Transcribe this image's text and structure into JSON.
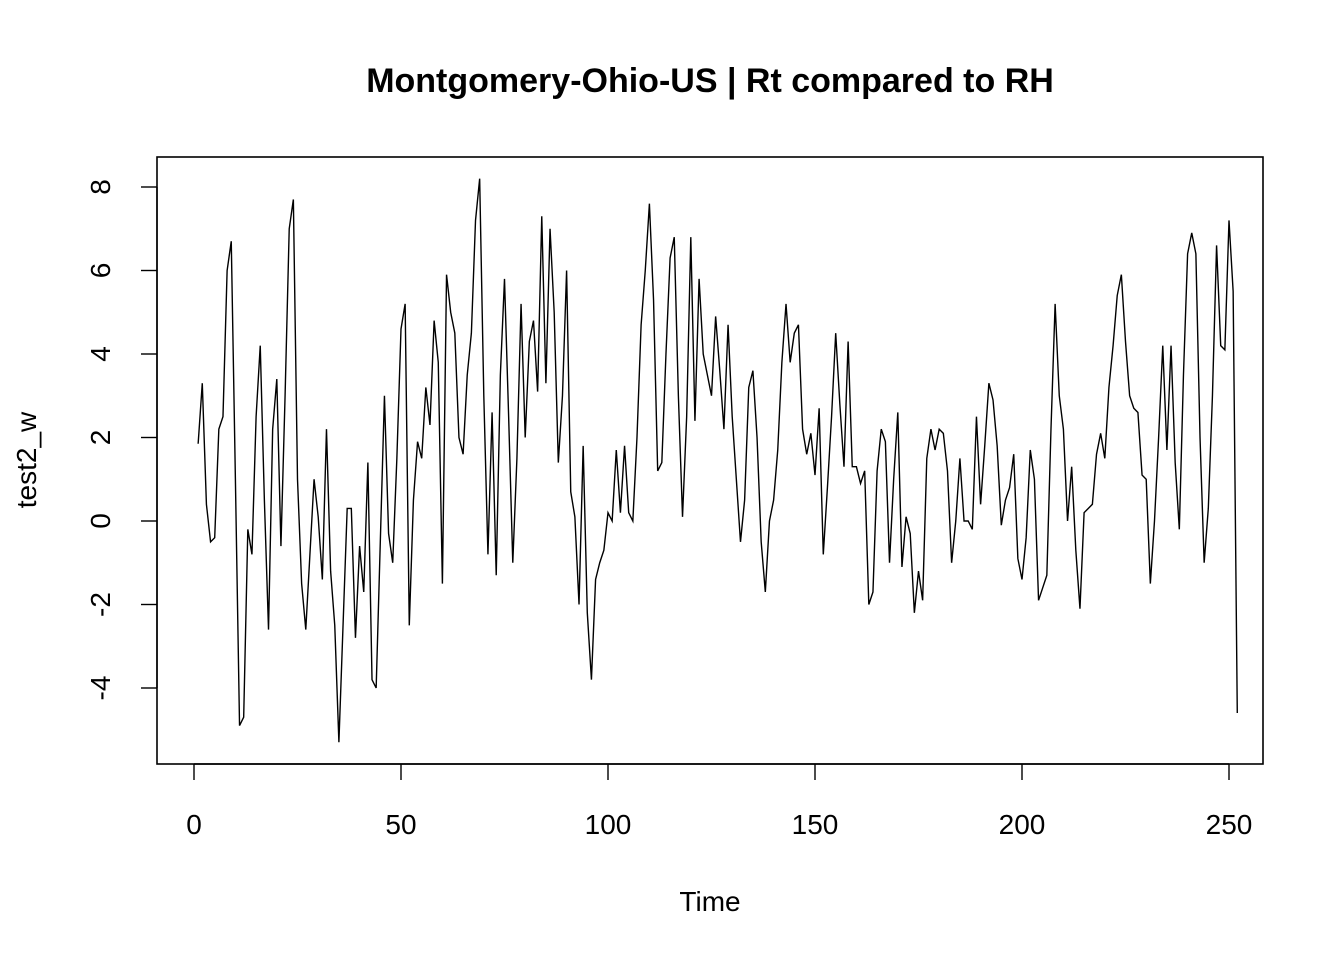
{
  "chart_data": {
    "type": "line",
    "title": "Montgomery-Ohio-US | Rt compared to RH",
    "xlabel": "Time",
    "ylabel": "test2_w",
    "xlim": [
      0,
      250
    ],
    "ylim": [
      -5.3,
      8.2
    ],
    "x_ticks": [
      0,
      50,
      100,
      150,
      200,
      250
    ],
    "x_tick_labels": [
      "0",
      "50",
      "100",
      "150",
      "200",
      "250"
    ],
    "y_ticks": [
      -4,
      -2,
      0,
      2,
      4,
      6,
      8
    ],
    "y_tick_labels": [
      "-4",
      "-2",
      "0",
      "2",
      "4",
      "6",
      "8"
    ],
    "grid": false,
    "x_start": 1,
    "series": [
      {
        "values": [
          1.85,
          3.3,
          0.4,
          -0.5,
          -0.4,
          2.2,
          2.5,
          6.0,
          6.7,
          1.0,
          -4.9,
          -4.7,
          -0.2,
          -0.8,
          2.5,
          4.2,
          0.5,
          -2.6,
          2.2,
          3.4,
          -0.6,
          3.0,
          7.0,
          7.7,
          1.0,
          -1.5,
          -2.6,
          -0.8,
          1.0,
          0.1,
          -1.4,
          2.2,
          -1.2,
          -2.5,
          -5.3,
          -2.5,
          0.3,
          0.3,
          -2.8,
          -0.6,
          -1.7,
          1.4,
          -3.8,
          -4.0,
          -0.5,
          3.0,
          -0.3,
          -1.0,
          1.5,
          4.6,
          5.2,
          -2.5,
          0.5,
          1.9,
          1.5,
          3.2,
          2.3,
          4.8,
          3.8,
          -1.5,
          5.9,
          5.0,
          4.5,
          2.0,
          1.6,
          3.5,
          4.5,
          7.2,
          8.2,
          3.0,
          -0.8,
          2.6,
          -1.3,
          3.5,
          5.8,
          2.5,
          -1.0,
          1.5,
          5.2,
          2.0,
          4.3,
          4.8,
          3.1,
          7.3,
          3.3,
          7.0,
          5.0,
          1.4,
          3.0,
          6.0,
          0.7,
          0.1,
          -2.0,
          1.8,
          -2.2,
          -3.8,
          -1.4,
          -1.0,
          -0.7,
          0.2,
          0.0,
          1.7,
          0.2,
          1.8,
          0.2,
          0.0,
          2.0,
          4.7,
          6.0,
          7.6,
          5.3,
          1.2,
          1.4,
          4.0,
          6.3,
          6.8,
          3.0,
          0.1,
          2.5,
          6.8,
          2.4,
          5.8,
          4.0,
          3.5,
          3.0,
          4.9,
          3.6,
          2.2,
          4.7,
          2.5,
          1.0,
          -0.5,
          0.5,
          3.2,
          3.6,
          2.0,
          -0.5,
          -1.7,
          0.0,
          0.5,
          1.7,
          3.8,
          5.2,
          3.8,
          4.5,
          4.7,
          2.2,
          1.6,
          2.1,
          1.1,
          2.7,
          -0.8,
          0.8,
          2.5,
          4.5,
          2.8,
          1.3,
          4.3,
          1.3,
          1.3,
          0.9,
          1.2,
          -2.0,
          -1.7,
          1.2,
          2.2,
          1.9,
          -1.0,
          1.0,
          2.6,
          -1.1,
          0.1,
          -0.3,
          -2.2,
          -1.2,
          -1.9,
          1.5,
          2.2,
          1.7,
          2.2,
          2.1,
          1.2,
          -1.0,
          0.0,
          1.5,
          0.0,
          0.0,
          -0.2,
          2.5,
          0.4,
          1.8,
          3.3,
          2.9,
          1.8,
          -0.1,
          0.5,
          0.8,
          1.6,
          -0.9,
          -1.4,
          -0.4,
          1.7,
          1.0,
          -1.9,
          -1.6,
          -1.3,
          2.2,
          5.2,
          3.0,
          2.2,
          0.0,
          1.3,
          -0.7,
          -2.1,
          0.2,
          0.3,
          0.4,
          1.6,
          2.1,
          1.5,
          3.2,
          4.2,
          5.4,
          5.9,
          4.3,
          3.0,
          2.7,
          2.6,
          1.1,
          1.0,
          -1.5,
          0.0,
          2.0,
          4.2,
          1.7,
          4.2,
          1.4,
          -0.2,
          3.5,
          6.4,
          6.9,
          6.4,
          2.0,
          -1.0,
          0.3,
          3.0,
          6.6,
          4.2,
          4.1,
          7.2,
          5.5,
          -4.6
        ]
      }
    ]
  }
}
